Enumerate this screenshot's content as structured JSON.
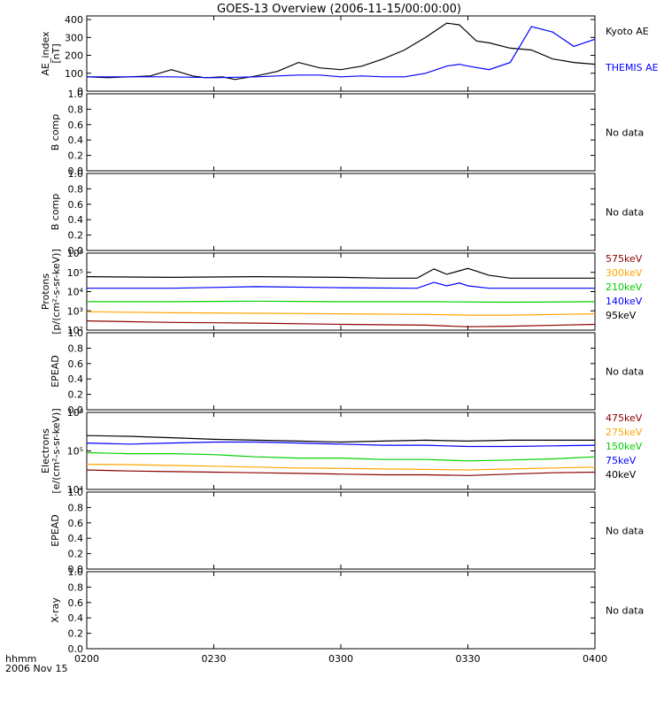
{
  "title": "GOES-13 Overview (2006-11-15/00:00:00)",
  "colors": {
    "black": "#000000",
    "blue": "#0000ff",
    "green": "#00d000",
    "orange": "#ffa500",
    "darkred": "#8b0000"
  },
  "bottom_label": {
    "line1": "hhmm",
    "line2": "2006 Nov 15"
  },
  "chart_data": [
    {
      "type": "line",
      "ylabel": [
        "AE_index",
        "[nT]"
      ],
      "ylim": [
        0,
        420
      ],
      "yticks": [
        0,
        100,
        200,
        300,
        400
      ],
      "ytick_labels": [
        "0",
        "100",
        "200",
        "300",
        "400"
      ],
      "xlim": [
        0,
        120
      ],
      "series": [
        {
          "name": "Kyoto AE",
          "color": "black",
          "x": [
            0,
            5,
            10,
            15,
            20,
            25,
            28,
            32,
            35,
            40,
            45,
            50,
            55,
            60,
            65,
            70,
            75,
            80,
            85,
            88,
            92,
            95,
            100,
            105,
            110,
            115,
            120
          ],
          "y": [
            80,
            75,
            80,
            85,
            120,
            85,
            75,
            80,
            65,
            85,
            110,
            160,
            130,
            120,
            140,
            180,
            230,
            300,
            380,
            370,
            280,
            270,
            240,
            230,
            180,
            160,
            150
          ]
        },
        {
          "name": "THEMIS AE",
          "color": "blue",
          "x": [
            0,
            10,
            20,
            30,
            40,
            50,
            55,
            60,
            65,
            70,
            75,
            80,
            85,
            88,
            90,
            95,
            100,
            105,
            110,
            115,
            120
          ],
          "y": [
            80,
            80,
            80,
            75,
            80,
            90,
            90,
            80,
            85,
            80,
            80,
            100,
            140,
            150,
            140,
            120,
            160,
            360,
            330,
            250,
            290
          ]
        }
      ],
      "legend": [
        "Kyoto AE",
        "THEMIS AE"
      ]
    },
    {
      "type": "line",
      "ylabel": [
        "B comp"
      ],
      "ylim": [
        0,
        1
      ],
      "yticks": [
        0,
        0.2,
        0.4,
        0.6,
        0.8,
        1.0
      ],
      "ytick_labels": [
        "0.0",
        "0.2",
        "0.4",
        "0.6",
        "0.8",
        "1.0"
      ],
      "message": "No data"
    },
    {
      "type": "line",
      "ylabel": [
        "B comp"
      ],
      "ylim": [
        0,
        1
      ],
      "yticks": [
        0,
        0.2,
        0.4,
        0.6,
        0.8,
        1.0
      ],
      "ytick_labels": [
        "0.0",
        "0.2",
        "0.4",
        "0.6",
        "0.8",
        "1.0"
      ],
      "message": "No data"
    },
    {
      "type": "line",
      "ylabel": [
        "Protons",
        "[p/(cm²-s-sr-keV)]"
      ],
      "ylog": true,
      "ylim": [
        100,
        1000000
      ],
      "yticks": [
        100,
        1000,
        10000,
        100000,
        1000000
      ],
      "ytick_labels": [
        "10²",
        "10³",
        "10⁴",
        "10⁵",
        "10⁶"
      ],
      "xlim": [
        0,
        120
      ],
      "series": [
        {
          "name": "95keV",
          "color": "black",
          "x": [
            0,
            20,
            40,
            60,
            70,
            78,
            82,
            85,
            88,
            90,
            95,
            100,
            110,
            120
          ],
          "y": [
            60000,
            55000,
            60000,
            55000,
            50000,
            50000,
            150000,
            80000,
            120000,
            160000,
            70000,
            50000,
            50000,
            50000
          ]
        },
        {
          "name": "140keV",
          "color": "blue",
          "x": [
            0,
            20,
            40,
            60,
            78,
            82,
            85,
            88,
            90,
            95,
            100,
            110,
            120
          ],
          "y": [
            15000,
            15000,
            18000,
            16000,
            15000,
            30000,
            20000,
            28000,
            20000,
            15000,
            15000,
            15000,
            15000
          ]
        },
        {
          "name": "210keV",
          "color": "green",
          "x": [
            0,
            20,
            40,
            60,
            80,
            100,
            120
          ],
          "y": [
            3000,
            3000,
            3200,
            3000,
            3000,
            2800,
            3000
          ]
        },
        {
          "name": "300keV",
          "color": "orange",
          "x": [
            0,
            20,
            40,
            60,
            80,
            90,
            100,
            120
          ],
          "y": [
            900,
            800,
            750,
            700,
            650,
            600,
            600,
            700
          ]
        },
        {
          "name": "575keV",
          "color": "darkred",
          "x": [
            0,
            20,
            40,
            60,
            80,
            90,
            100,
            120
          ],
          "y": [
            300,
            250,
            230,
            200,
            180,
            150,
            160,
            200
          ]
        }
      ],
      "legend": [
        "575keV",
        "300keV",
        "210keV",
        "140keV",
        "95keV"
      ]
    },
    {
      "type": "line",
      "ylabel": [
        "EPEAD"
      ],
      "ylim": [
        0,
        1
      ],
      "yticks": [
        0,
        0.2,
        0.4,
        0.6,
        0.8,
        1.0
      ],
      "ytick_labels": [
        "0.0",
        "0.2",
        "0.4",
        "0.6",
        "0.8",
        "1.0"
      ],
      "message": "No data"
    },
    {
      "type": "line",
      "ylabel": [
        "Electrons",
        "[e/(cm²-s-sr-keV)]"
      ],
      "ylog": true,
      "ylim": [
        10000,
        1000000
      ],
      "yticks": [
        10000,
        100000,
        1000000
      ],
      "ytick_labels": [
        "10⁴",
        "10⁵",
        "10⁶"
      ],
      "xlim": [
        0,
        120
      ],
      "series": [
        {
          "name": "40keV",
          "color": "black",
          "x": [
            0,
            10,
            20,
            30,
            40,
            50,
            60,
            70,
            80,
            90,
            100,
            110,
            120
          ],
          "y": [
            250000,
            240000,
            220000,
            200000,
            190000,
            180000,
            170000,
            180000,
            190000,
            180000,
            190000,
            190000,
            190000
          ]
        },
        {
          "name": "75keV",
          "color": "blue",
          "x": [
            0,
            10,
            20,
            30,
            40,
            50,
            60,
            70,
            80,
            90,
            100,
            110,
            120
          ],
          "y": [
            160000,
            150000,
            160000,
            170000,
            170000,
            160000,
            150000,
            140000,
            140000,
            130000,
            130000,
            135000,
            140000
          ]
        },
        {
          "name": "150keV",
          "color": "green",
          "x": [
            0,
            10,
            20,
            30,
            40,
            50,
            60,
            70,
            80,
            90,
            100,
            110,
            120
          ],
          "y": [
            90000,
            85000,
            85000,
            80000,
            70000,
            65000,
            65000,
            60000,
            60000,
            55000,
            58000,
            62000,
            70000
          ]
        },
        {
          "name": "275keV",
          "color": "orange",
          "x": [
            0,
            10,
            20,
            30,
            40,
            50,
            60,
            70,
            80,
            90,
            100,
            110,
            120
          ],
          "y": [
            45000,
            44000,
            42000,
            40000,
            38000,
            36000,
            35000,
            34000,
            33000,
            32000,
            34000,
            36000,
            38000
          ]
        },
        {
          "name": "475keV",
          "color": "darkred",
          "x": [
            0,
            10,
            20,
            30,
            40,
            50,
            60,
            70,
            80,
            90,
            100,
            110,
            120
          ],
          "y": [
            32000,
            30000,
            29000,
            28000,
            27000,
            26000,
            25000,
            24000,
            24000,
            23000,
            25000,
            27000,
            28000
          ]
        }
      ],
      "legend": [
        "475keV",
        "275keV",
        "150keV",
        "75keV",
        "40keV"
      ]
    },
    {
      "type": "line",
      "ylabel": [
        "EPEAD"
      ],
      "ylim": [
        0,
        1
      ],
      "yticks": [
        0,
        0.2,
        0.4,
        0.6,
        0.8,
        1.0
      ],
      "ytick_labels": [
        "0.0",
        "0.2",
        "0.4",
        "0.6",
        "0.8",
        "1.0"
      ],
      "message": "No data"
    },
    {
      "type": "line",
      "ylabel": [
        "X-ray"
      ],
      "ylim": [
        0,
        1
      ],
      "yticks": [
        0,
        0.2,
        0.4,
        0.6,
        0.8,
        1.0
      ],
      "ytick_labels": [
        "0.0",
        "0.2",
        "0.4",
        "0.6",
        "0.8",
        "1.0"
      ],
      "message": "No data"
    }
  ],
  "x_axis": {
    "ticks": [
      0,
      30,
      60,
      90,
      120
    ],
    "tick_labels": [
      "0200",
      "0230",
      "0300",
      "0330",
      "0400"
    ]
  }
}
